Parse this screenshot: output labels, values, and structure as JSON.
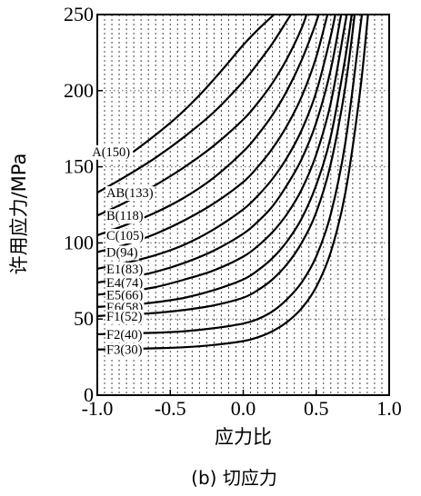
{
  "chart_data": {
    "type": "line",
    "title": "",
    "caption": "(b) 切应力",
    "xlabel": "应力比",
    "ylabel": "许用应力/MPa",
    "xlim": [
      -1.0,
      1.0
    ],
    "ylim": [
      0,
      250
    ],
    "xticks": [
      -1.0,
      -0.5,
      0.0,
      0.5,
      1.0
    ],
    "xtick_labels": [
      "-1.0",
      "-0.5",
      "0.0",
      "0.5",
      "1.0"
    ],
    "yticks": [
      0,
      50,
      100,
      150,
      200,
      250
    ],
    "ytick_labels": [
      "0",
      "50",
      "100",
      "150",
      "200",
      "250"
    ],
    "grid": "dashed vertical lines every 0.05, dotted horizontal at 50, 100, 150, 200",
    "series": [
      {
        "name": "A(150)",
        "label": "A(150)",
        "x": [
          -0.75,
          -0.6,
          -0.45,
          -0.3,
          -0.15,
          0.0,
          0.1,
          0.2,
          0.27
        ],
        "y": [
          160,
          171,
          183,
          197,
          213,
          230,
          240,
          249,
          255
        ]
      },
      {
        "name": "AB(133)",
        "label": "AB(133)",
        "x": [
          -1.0,
          -0.8,
          -0.6,
          -0.4,
          -0.2,
          0.0,
          0.1,
          0.2,
          0.3,
          0.36
        ],
        "y": [
          133,
          144,
          156,
          170,
          186,
          206,
          218,
          231,
          246,
          255
        ]
      },
      {
        "name": "B(118)",
        "label": "B(118)",
        "x": [
          -1.0,
          -0.8,
          -0.6,
          -0.4,
          -0.2,
          0.0,
          0.1,
          0.2,
          0.3,
          0.4,
          0.45
        ],
        "y": [
          118,
          127,
          138,
          150,
          164,
          181,
          192,
          205,
          221,
          241,
          255
        ]
      },
      {
        "name": "C(105)",
        "label": "C(105)",
        "x": [
          -1.0,
          -0.8,
          -0.6,
          -0.4,
          -0.2,
          0.0,
          0.1,
          0.2,
          0.3,
          0.4,
          0.5,
          0.53
        ],
        "y": [
          105,
          112,
          120,
          130,
          143,
          160,
          171,
          184,
          200,
          220,
          245,
          255
        ]
      },
      {
        "name": "D(94)",
        "label": "D(94)",
        "x": [
          -1.0,
          -0.8,
          -0.6,
          -0.4,
          -0.2,
          0.0,
          0.1,
          0.2,
          0.3,
          0.4,
          0.5,
          0.59
        ],
        "y": [
          94,
          99,
          106,
          115,
          126,
          140,
          150,
          162,
          177,
          196,
          222,
          255
        ]
      },
      {
        "name": "E1(83)",
        "label": "E1(83)",
        "x": [
          -1.0,
          -0.8,
          -0.6,
          -0.4,
          -0.2,
          0.0,
          0.1,
          0.2,
          0.3,
          0.4,
          0.5,
          0.6,
          0.64
        ],
        "y": [
          83,
          87,
          92,
          99,
          109,
          122,
          131,
          142,
          156,
          174,
          199,
          236,
          255
        ]
      },
      {
        "name": "E4(74)",
        "label": "E4(74)",
        "x": [
          -1.0,
          -0.8,
          -0.6,
          -0.4,
          -0.2,
          0.0,
          0.1,
          0.2,
          0.3,
          0.4,
          0.5,
          0.6,
          0.68
        ],
        "y": [
          74,
          77,
          81,
          87,
          95,
          106,
          114,
          124,
          138,
          155,
          179,
          214,
          255
        ]
      },
      {
        "name": "E5(66)",
        "label": "E5(66)",
        "x": [
          -1.0,
          -0.8,
          -0.6,
          -0.4,
          -0.2,
          0.0,
          0.1,
          0.2,
          0.3,
          0.4,
          0.5,
          0.6,
          0.7,
          0.72
        ],
        "y": [
          66,
          68,
          71,
          76,
          82,
          91,
          98,
          107,
          119,
          135,
          158,
          192,
          245,
          255
        ]
      },
      {
        "name": "E6(58)",
        "label": "E6(58)",
        "x": [
          -1.0,
          -0.8,
          -0.6,
          -0.4,
          -0.2,
          0.0,
          0.1,
          0.2,
          0.3,
          0.4,
          0.5,
          0.6,
          0.7,
          0.75
        ],
        "y": [
          58,
          59,
          61,
          64,
          69,
          76,
          82,
          90,
          101,
          116,
          138,
          170,
          222,
          255
        ]
      },
      {
        "name": "F1(52)",
        "label": "F1(52)",
        "x": [
          -1.0,
          -0.8,
          -0.6,
          -0.4,
          -0.2,
          0.0,
          0.1,
          0.2,
          0.3,
          0.4,
          0.5,
          0.6,
          0.7,
          0.77
        ],
        "y": [
          52,
          53,
          54,
          56,
          59,
          64,
          69,
          76,
          86,
          100,
          120,
          152,
          203,
          255
        ]
      },
      {
        "name": "F2(40)",
        "label": "F2(40)",
        "x": [
          -1.0,
          -0.8,
          -0.6,
          -0.4,
          -0.2,
          0.0,
          0.1,
          0.2,
          0.3,
          0.4,
          0.5,
          0.6,
          0.7,
          0.8,
          0.82
        ],
        "y": [
          40,
          40.5,
          41,
          42,
          44,
          47,
          50,
          55,
          63,
          74,
          91,
          119,
          166,
          240,
          255
        ]
      },
      {
        "name": "F3(30)",
        "label": "F3(30)",
        "x": [
          -1.0,
          -0.8,
          -0.6,
          -0.4,
          -0.2,
          0.0,
          0.1,
          0.2,
          0.3,
          0.4,
          0.5,
          0.6,
          0.7,
          0.8,
          0.86
        ],
        "y": [
          30,
          30.3,
          30.8,
          31.5,
          33,
          35.5,
          38,
          42,
          48,
          57,
          71,
          94,
          133,
          199,
          255
        ]
      }
    ]
  }
}
